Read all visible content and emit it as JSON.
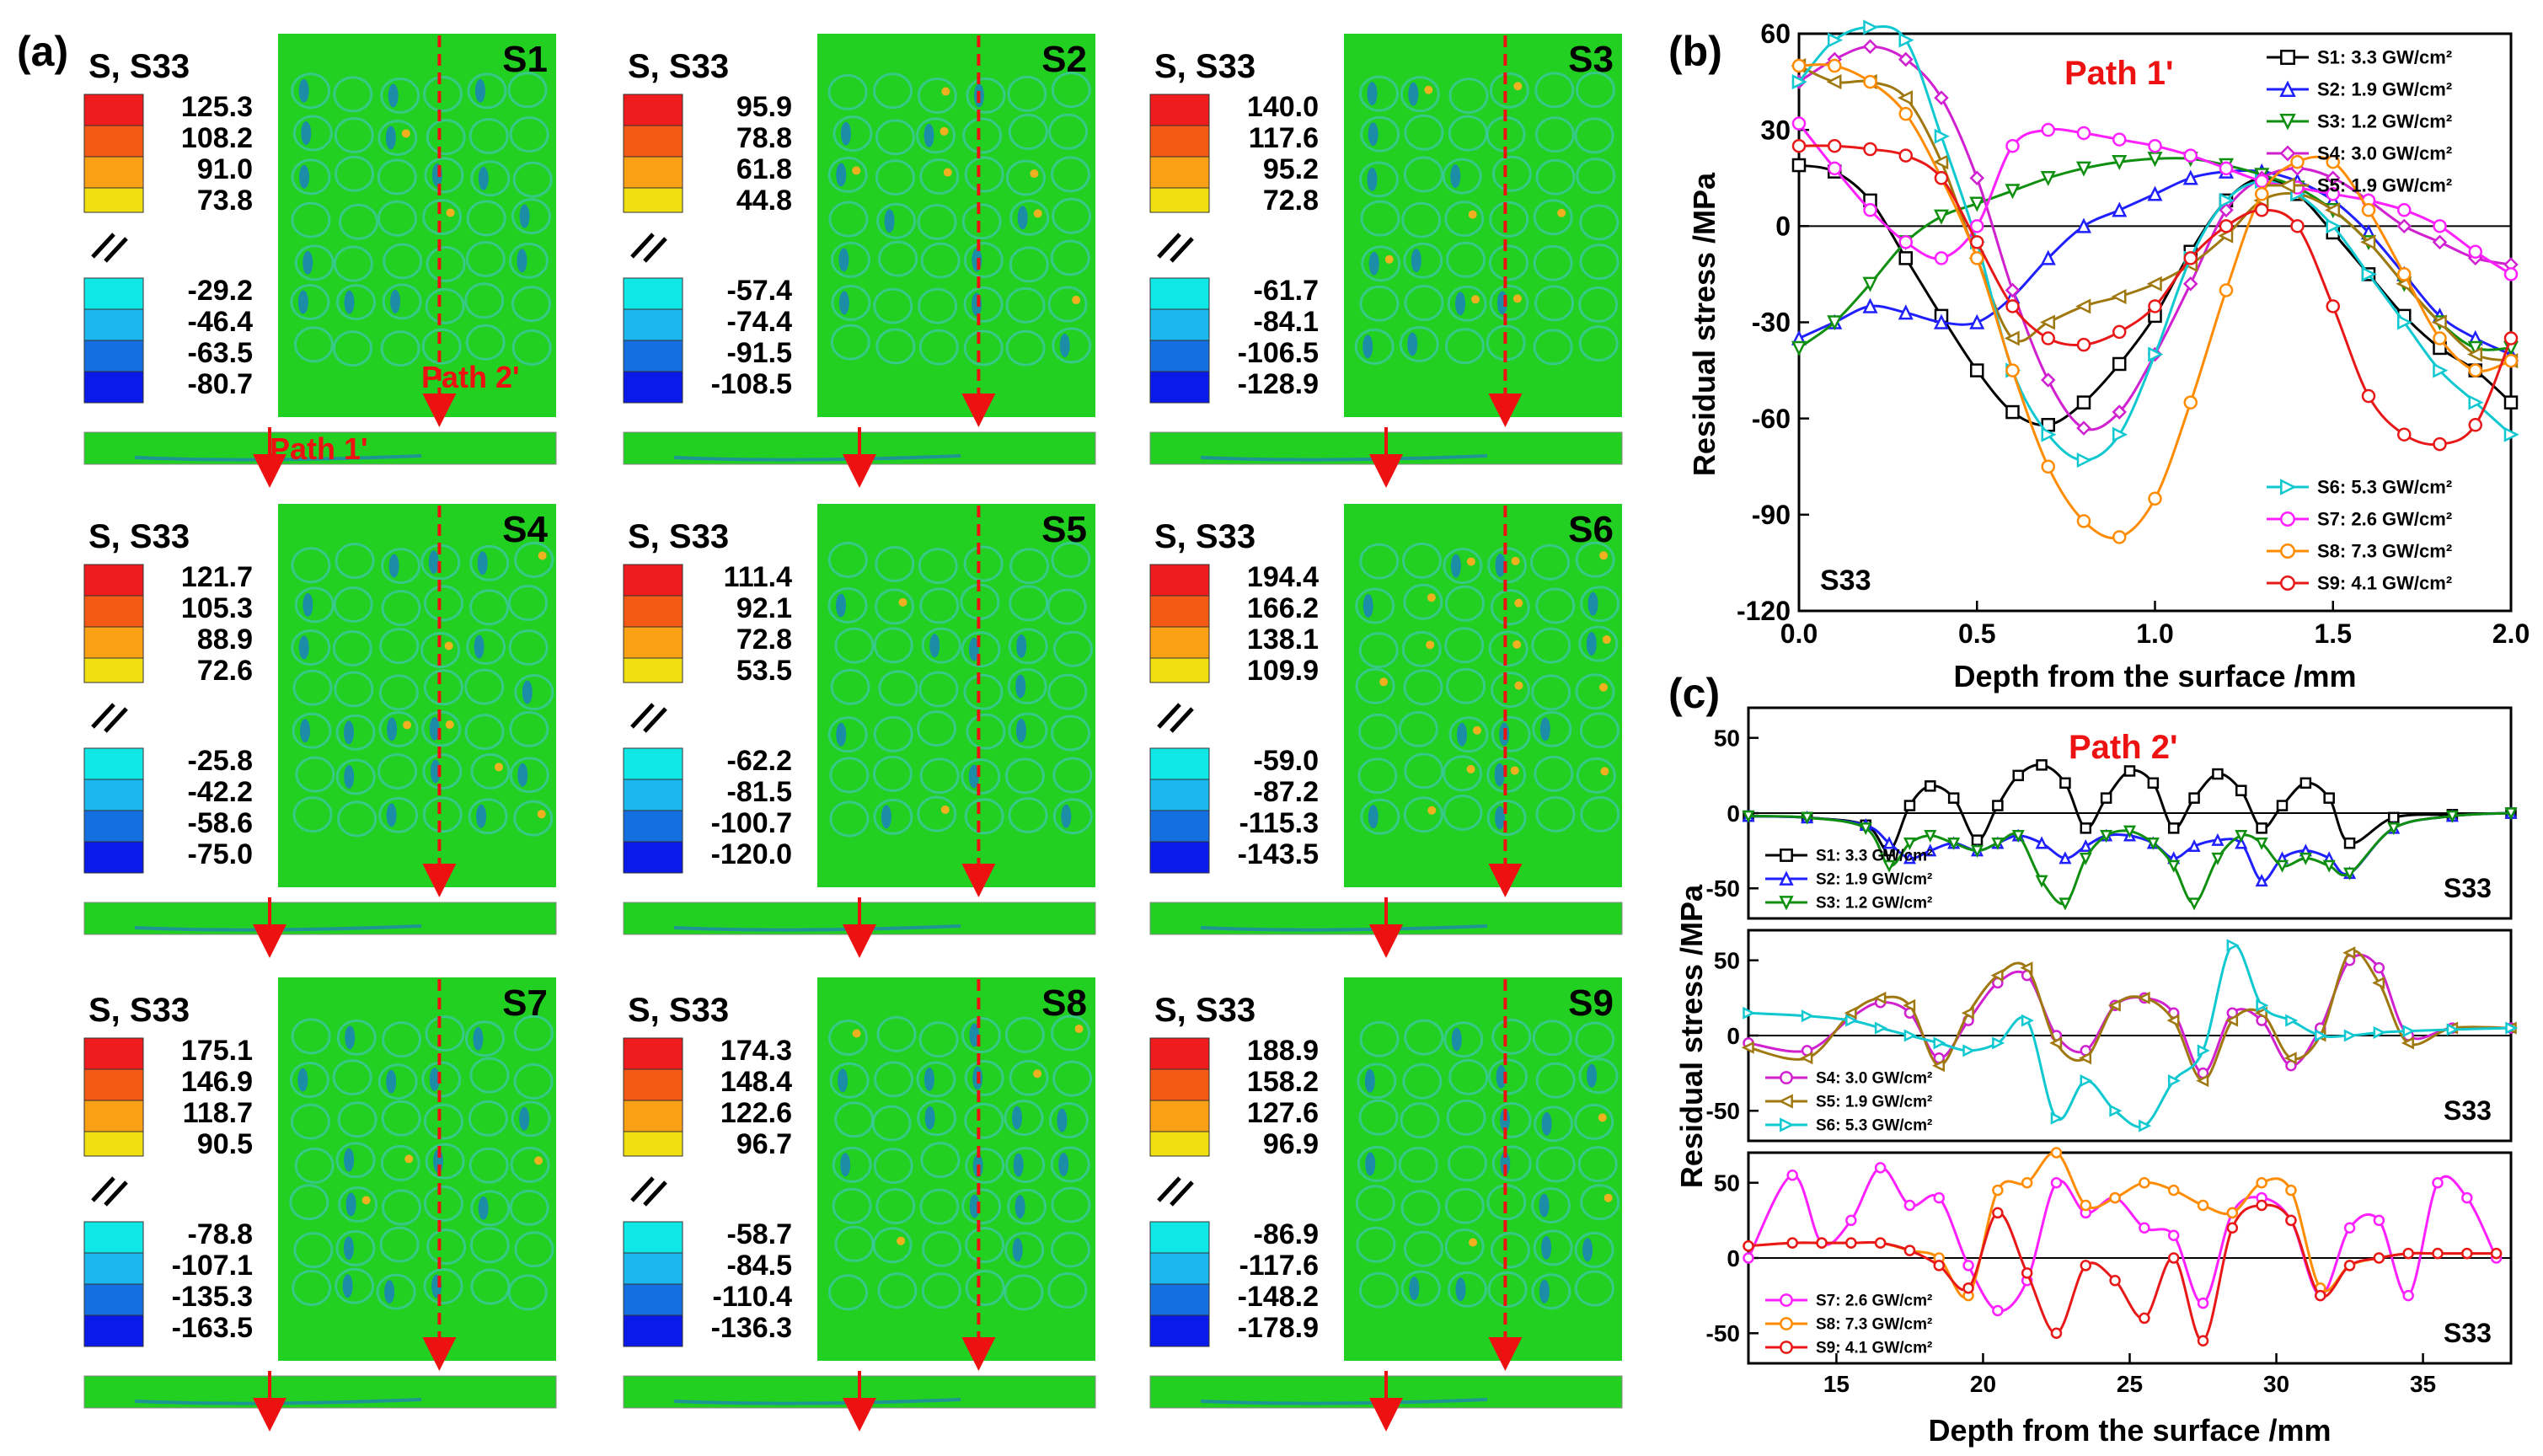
{
  "panel_labels": {
    "a": "(a)",
    "b": "(b)",
    "c": "(c)"
  },
  "contour_panels": [
    {
      "id": "S1",
      "header": "S, S33",
      "pos": [
        "125.3",
        "108.2",
        "91.0",
        "73.8"
      ],
      "neg": [
        "-29.2",
        "-46.4",
        "-63.5",
        "-80.7"
      ],
      "path1_label": "Path 1'",
      "path2_label": "Path 2'"
    },
    {
      "id": "S2",
      "header": "S, S33",
      "pos": [
        "95.9",
        "78.8",
        "61.8",
        "44.8"
      ],
      "neg": [
        "-57.4",
        "-74.4",
        "-91.5",
        "-108.5"
      ]
    },
    {
      "id": "S3",
      "header": "S, S33",
      "pos": [
        "140.0",
        "117.6",
        "95.2",
        "72.8"
      ],
      "neg": [
        "-61.7",
        "-84.1",
        "-106.5",
        "-128.9"
      ]
    },
    {
      "id": "S4",
      "header": "S, S33",
      "pos": [
        "121.7",
        "105.3",
        "88.9",
        "72.6"
      ],
      "neg": [
        "-25.8",
        "-42.2",
        "-58.6",
        "-75.0"
      ]
    },
    {
      "id": "S5",
      "header": "S, S33",
      "pos": [
        "111.4",
        "92.1",
        "72.8",
        "53.5"
      ],
      "neg": [
        "-62.2",
        "-81.5",
        "-100.7",
        "-120.0"
      ]
    },
    {
      "id": "S6",
      "header": "S, S33",
      "pos": [
        "194.4",
        "166.2",
        "138.1",
        "109.9"
      ],
      "neg": [
        "-59.0",
        "-87.2",
        "-115.3",
        "-143.5"
      ]
    },
    {
      "id": "S7",
      "header": "S, S33",
      "pos": [
        "175.1",
        "146.9",
        "118.7",
        "90.5"
      ],
      "neg": [
        "-78.8",
        "-107.1",
        "-135.3",
        "-163.5"
      ]
    },
    {
      "id": "S8",
      "header": "S, S33",
      "pos": [
        "174.3",
        "148.4",
        "122.6",
        "96.7"
      ],
      "neg": [
        "-58.7",
        "-84.5",
        "-110.4",
        "-136.3"
      ]
    },
    {
      "id": "S9",
      "header": "S, S33",
      "pos": [
        "188.9",
        "158.2",
        "127.6",
        "96.9"
      ],
      "neg": [
        "-86.9",
        "-117.6",
        "-148.2",
        "-178.9"
      ]
    }
  ],
  "colors": {
    "S1": "#000000",
    "S2": "#1f1fff",
    "S3": "#0f8f0f",
    "S4": "#d020d0",
    "S5": "#a07810",
    "S6": "#10c8d0",
    "S7": "#ff20ff",
    "S8": "#ff8c00",
    "S9": "#e81818",
    "fill_green": "#22d022",
    "legend_pos": [
      "#ee1c1c",
      "#f55a14",
      "#faa014",
      "#f0e010"
    ],
    "legend_neg": [
      "#10e8e8",
      "#1ab8ee",
      "#1470e0",
      "#0a1ae8"
    ],
    "path_red": "#ee1111"
  },
  "chart_data": [
    {
      "id": "b",
      "type": "line",
      "title": "Path 1'",
      "annotation": "S33",
      "xlabel": "Depth from the surface /mm",
      "ylabel": "Residual stress /MPa",
      "xlim": [
        0,
        2.0
      ],
      "ylim": [
        -120,
        60
      ],
      "xticks": [
        "0.0",
        "0.5",
        "1.0",
        "1.5",
        "2.0"
      ],
      "xtick_values": [
        0,
        0.5,
        1.0,
        1.5,
        2.0
      ],
      "yticks": [
        "-120",
        "-90",
        "-60",
        "-30",
        "0",
        "30",
        "60"
      ],
      "ytick_values": [
        -120,
        -90,
        -60,
        -30,
        0,
        30,
        60
      ],
      "legend_top": [
        "S1: 3.3 GW/cm²",
        "S2: 1.9 GW/cm²",
        "S3: 1.2 GW/cm²",
        "S4: 3.0 GW/cm²",
        "S5: 1.9 GW/cm²"
      ],
      "legend_bottom": [
        "S6: 5.3 GW/cm²",
        "S7: 2.6 GW/cm²",
        "S8: 7.3 GW/cm²",
        "S9: 4.1 GW/cm²"
      ],
      "x": [
        0,
        0.1,
        0.2,
        0.3,
        0.4,
        0.5,
        0.6,
        0.7,
        0.8,
        0.9,
        1.0,
        1.1,
        1.2,
        1.3,
        1.4,
        1.5,
        1.6,
        1.7,
        1.8,
        1.9,
        2.0
      ],
      "series": [
        {
          "key": "S1",
          "marker": "square",
          "values": [
            19,
            17,
            8,
            -10,
            -28,
            -45,
            -58,
            -62,
            -55,
            -43,
            -28,
            -8,
            8,
            15,
            10,
            -2,
            -15,
            -28,
            -38,
            -45,
            -55
          ]
        },
        {
          "key": "S2",
          "marker": "triangle-up",
          "values": [
            -35,
            -30,
            -25,
            -27,
            -30,
            -30,
            -22,
            -10,
            0,
            5,
            10,
            15,
            17,
            17,
            14,
            8,
            -2,
            -15,
            -28,
            -35,
            -40
          ]
        },
        {
          "key": "S3",
          "marker": "triangle-down",
          "values": [
            -38,
            -30,
            -18,
            -5,
            3,
            7,
            11,
            15,
            18,
            20,
            21,
            21,
            19,
            16,
            12,
            5,
            -5,
            -18,
            -30,
            -38,
            -38
          ]
        },
        {
          "key": "S4",
          "marker": "diamond",
          "values": [
            45,
            52,
            56,
            52,
            40,
            15,
            -20,
            -48,
            -63,
            -58,
            -40,
            -18,
            5,
            15,
            18,
            15,
            8,
            0,
            -5,
            -10,
            -12
          ]
        },
        {
          "key": "S5",
          "marker": "triangle-left",
          "values": [
            50,
            45,
            45,
            40,
            20,
            -10,
            -35,
            -30,
            -25,
            -22,
            -18,
            -12,
            -3,
            8,
            10,
            5,
            -5,
            -18,
            -30,
            -40,
            -42
          ]
        },
        {
          "key": "S6",
          "marker": "triangle-right",
          "values": [
            45,
            58,
            62,
            58,
            28,
            -5,
            -45,
            -65,
            -73,
            -65,
            -40,
            -10,
            8,
            14,
            10,
            0,
            -15,
            -30,
            -45,
            -55,
            -65
          ]
        },
        {
          "key": "S7",
          "marker": "circle",
          "values": [
            32,
            18,
            5,
            -5,
            -10,
            0,
            25,
            30,
            29,
            27,
            25,
            22,
            18,
            14,
            12,
            10,
            8,
            5,
            0,
            -8,
            -15
          ]
        },
        {
          "key": "S8",
          "marker": "circle",
          "values": [
            50,
            50,
            45,
            35,
            15,
            -10,
            -45,
            -75,
            -92,
            -97,
            -85,
            -55,
            -20,
            10,
            20,
            20,
            5,
            -15,
            -35,
            -45,
            -42
          ]
        },
        {
          "key": "S9",
          "marker": "circle",
          "values": [
            25,
            25,
            24,
            22,
            15,
            -5,
            -25,
            -35,
            -37,
            -33,
            -25,
            -10,
            0,
            5,
            0,
            -25,
            -53,
            -65,
            -68,
            -62,
            -35
          ]
        }
      ]
    },
    {
      "id": "c1",
      "type": "line",
      "title": "Path 2'",
      "annotation": "S33",
      "xlabel": "",
      "ylabel": "",
      "xlim": [
        12,
        38
      ],
      "ylim": [
        -70,
        70
      ],
      "yticks": [
        "-50",
        "0",
        "50"
      ],
      "ytick_values": [
        -50,
        0,
        50
      ],
      "legend": [
        "S1: 3.3 GW/cm²",
        "S2: 1.9 GW/cm²",
        "S3: 1.2 GW/cm²"
      ],
      "x": [
        12,
        14,
        16,
        16.8,
        17.5,
        18.2,
        19,
        19.8,
        20.5,
        21.2,
        22,
        22.8,
        23.5,
        24.2,
        25,
        25.8,
        26.5,
        27.2,
        28,
        28.8,
        29.5,
        30.2,
        31,
        31.8,
        32.5,
        34,
        36,
        38
      ],
      "series": [
        {
          "key": "S1",
          "marker": "square",
          "values": [
            -2,
            -3,
            -8,
            -25,
            5,
            18,
            10,
            -18,
            5,
            25,
            32,
            20,
            -10,
            10,
            28,
            20,
            -10,
            10,
            26,
            15,
            -10,
            5,
            20,
            10,
            -20,
            -3,
            -1,
            0
          ]
        },
        {
          "key": "S2",
          "marker": "triangle-up",
          "values": [
            -2,
            -3,
            -8,
            -20,
            -30,
            -25,
            -20,
            -25,
            -20,
            -15,
            -20,
            -30,
            -22,
            -15,
            -15,
            -20,
            -30,
            -22,
            -18,
            -20,
            -45,
            -30,
            -25,
            -30,
            -40,
            -10,
            -2,
            0
          ]
        },
        {
          "key": "S3",
          "marker": "triangle-down",
          "values": [
            -2,
            -3,
            -10,
            -35,
            -20,
            -15,
            -20,
            -25,
            -20,
            -15,
            -45,
            -60,
            -30,
            -15,
            -12,
            -20,
            -35,
            -60,
            -30,
            -15,
            -20,
            -35,
            -30,
            -35,
            -40,
            -10,
            -2,
            0
          ]
        }
      ]
    },
    {
      "id": "c2",
      "type": "line",
      "annotation": "S33",
      "xlabel": "",
      "ylabel": "Residual stress /MPa",
      "xlim": [
        12,
        38
      ],
      "ylim": [
        -70,
        70
      ],
      "yticks": [
        "-50",
        "0",
        "50"
      ],
      "ytick_values": [
        -50,
        0,
        50
      ],
      "legend": [
        "S4: 3.0 GW/cm²",
        "S5: 1.9 GW/cm²",
        "S6: 5.3 GW/cm²"
      ],
      "x": [
        12,
        14,
        15.5,
        16.5,
        17.5,
        18.5,
        19.5,
        20.5,
        21.5,
        22.5,
        23.5,
        24.5,
        25.5,
        26.5,
        27.5,
        28.5,
        29.5,
        30.5,
        31.5,
        32.5,
        33.5,
        34.5,
        36,
        38
      ],
      "series": [
        {
          "key": "S4",
          "marker": "circle",
          "values": [
            -5,
            -10,
            12,
            22,
            15,
            -15,
            10,
            35,
            40,
            0,
            -10,
            20,
            25,
            15,
            -25,
            15,
            10,
            -20,
            5,
            50,
            45,
            0,
            5,
            5
          ]
        },
        {
          "key": "S5",
          "marker": "triangle-left",
          "values": [
            -8,
            -15,
            15,
            25,
            20,
            -20,
            15,
            40,
            45,
            -5,
            -15,
            20,
            25,
            10,
            -30,
            10,
            15,
            -15,
            0,
            55,
            35,
            -5,
            5,
            5
          ]
        },
        {
          "key": "S6",
          "marker": "triangle-right",
          "values": [
            15,
            13,
            10,
            5,
            0,
            -5,
            -10,
            -5,
            10,
            -55,
            -30,
            -50,
            -60,
            -30,
            -10,
            60,
            20,
            10,
            0,
            0,
            2,
            3,
            4,
            5
          ]
        }
      ]
    },
    {
      "id": "c3",
      "type": "line",
      "annotation": "S33",
      "xlabel": "Depth from the surface /mm",
      "ylabel": "",
      "xlim": [
        12,
        38
      ],
      "ylim": [
        -70,
        70
      ],
      "xticks": [
        "15",
        "20",
        "25",
        "30",
        "35"
      ],
      "xtick_values": [
        15,
        20,
        25,
        30,
        35
      ],
      "yticks": [
        "-50",
        "0",
        "50"
      ],
      "ytick_values": [
        -50,
        0,
        50
      ],
      "legend": [
        "S7: 2.6 GW/cm²",
        "S8: 7.3 GW/cm²",
        "S9: 4.1 GW/cm²"
      ],
      "x": [
        12,
        13.5,
        14.5,
        15.5,
        16.5,
        17.5,
        18.5,
        19.5,
        20.5,
        21.5,
        22.5,
        23.5,
        24.5,
        25.5,
        26.5,
        27.5,
        28.5,
        29.5,
        30.5,
        31.5,
        32.5,
        33.5,
        34.5,
        35.5,
        36.5,
        37.5
      ],
      "series": [
        {
          "key": "S7",
          "marker": "circle",
          "values": [
            0,
            55,
            10,
            25,
            60,
            35,
            40,
            -5,
            -35,
            -15,
            50,
            30,
            40,
            20,
            15,
            -30,
            30,
            40,
            25,
            -25,
            20,
            25,
            -25,
            50,
            40,
            0
          ]
        },
        {
          "key": "S8",
          "marker": "circle",
          "values": [
            8,
            10,
            10,
            10,
            10,
            5,
            0,
            -25,
            45,
            50,
            70,
            35,
            40,
            50,
            45,
            35,
            30,
            50,
            45,
            -20,
            -5,
            0,
            3,
            3,
            3,
            3
          ]
        },
        {
          "key": "S9",
          "marker": "circle",
          "values": [
            8,
            10,
            10,
            10,
            10,
            5,
            -5,
            -20,
            30,
            -10,
            -50,
            -5,
            -15,
            -40,
            0,
            -55,
            20,
            35,
            25,
            -25,
            -5,
            0,
            3,
            3,
            3,
            3
          ]
        }
      ]
    }
  ]
}
